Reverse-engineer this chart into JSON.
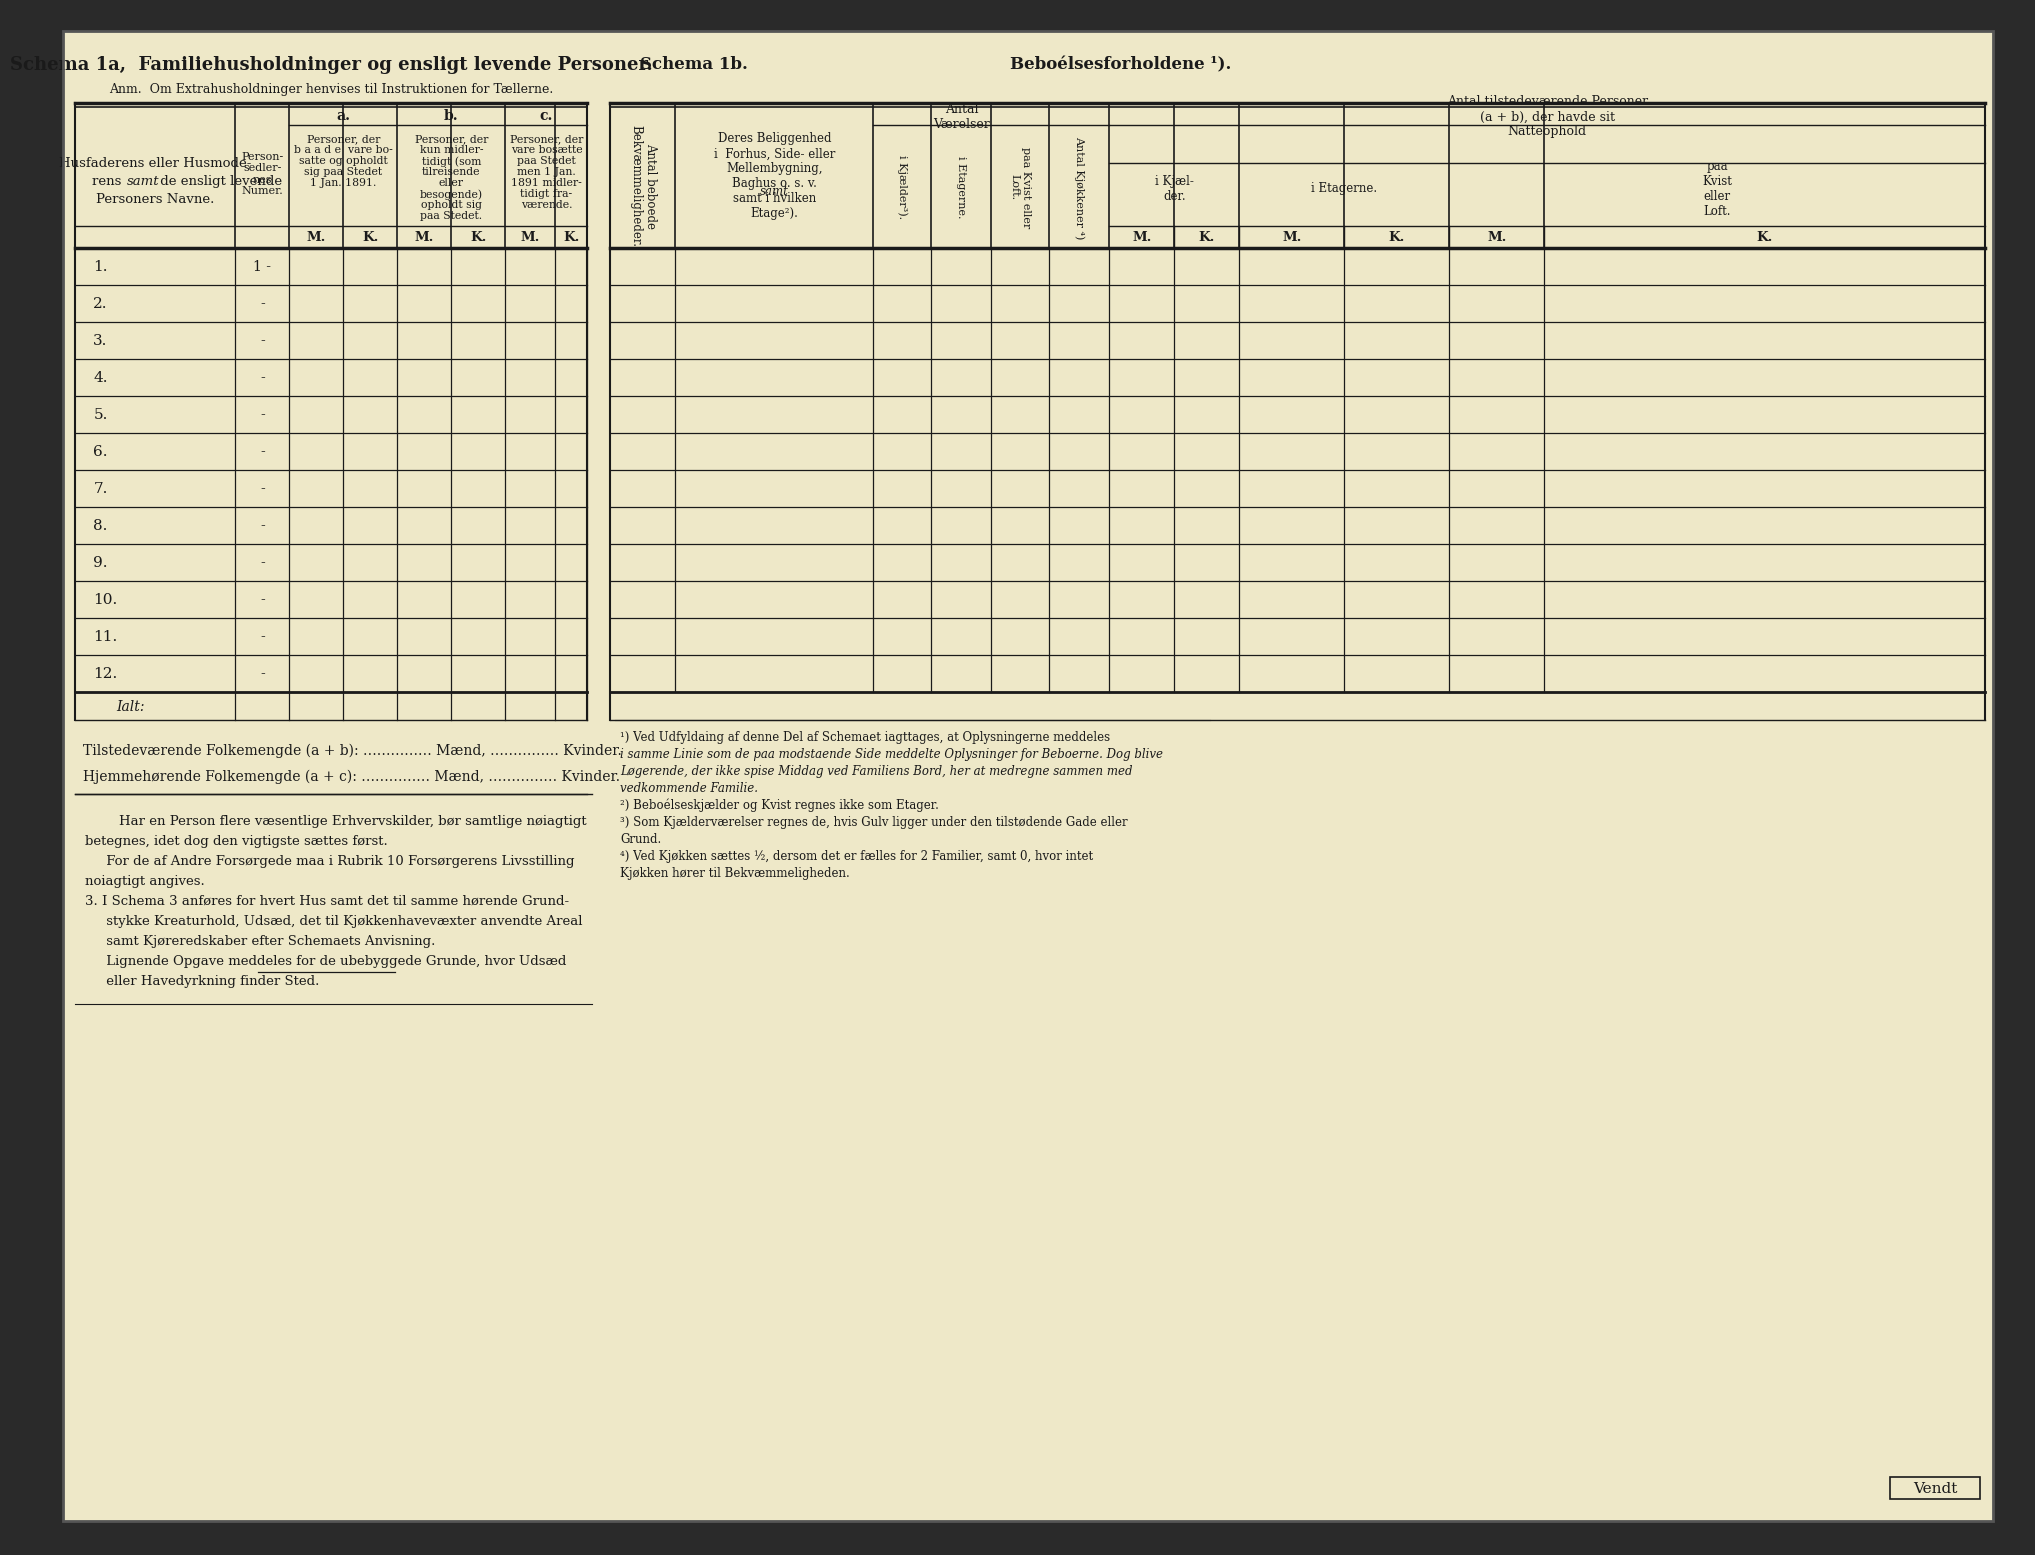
{
  "bg_color": "#eee8c8",
  "border_color": "#1a1a1a",
  "text_color": "#1a1a1a",
  "page_bg": "#2a2a2a",
  "left_title": "Schema 1a,  Familiehusholdninger og ensligt levende Personer.",
  "left_subtitle": "Anm.  Om Extrahusholdninger henvises til Instruktionen for Tællerne.",
  "right_title_left": "Schema 1b.",
  "right_title_right": "Beboélsesforholdene ¹).",
  "col_a_header": "a.",
  "col_b_header": "b.",
  "col_c_header": "c.",
  "left_main_col_header_line1": "Husfaderens eller Husmode-",
  "left_main_col_header_line2": "rens ",
  "left_main_col_header_line2_italic": "samt",
  "left_main_col_header_line2_rest": " de ensligt levende",
  "left_main_col_header_line3": "Personers Navne.",
  "person_num_header": "Person-\nsedler-\nnes\nNumer.",
  "col_a_text_lines": [
    "Personer, der",
    "b a a d e  vare bo-",
    "satte og opholdt",
    "sig paa Stedet",
    "1 Jan. 1891."
  ],
  "col_b_text_lines": [
    "Personer, der",
    "kun midler-",
    "tidigt (som",
    "tilreisende",
    "eller",
    "besogende)",
    "opholdt sig",
    "paa Stedet."
  ],
  "col_c_text_lines": [
    "Personer, der",
    "vare bosætte",
    "paa Stedet",
    "men 1 Jan.",
    "1891 midler-",
    "tidigt fra-",
    "værende."
  ],
  "row_numbers": [
    "1.",
    "2.",
    "3.",
    "4.",
    "5.",
    "6.",
    "7.",
    "8.",
    "9.",
    "10.",
    "11.",
    "12."
  ],
  "ialt_text": "Ialt:",
  "folkemengde_line1": "Tilstedeværende Folkemengde (a + b): …………… Mænd, …………… Kvinder.",
  "folkemengde_line2": "Hjemmehørende Folkemengde (a + c): …………… Mænd, …………… Kvinder.",
  "bottom_text": [
    "        Har en Person flere væsentlige Erhvervskilder, bør samtlige nøiagtigt",
    "betegnes, idet dog den vigtigste sættes først.",
    "     For de af Andre Forsørgede maa i Rubrik 10 Forsørgerens Livsstilling",
    "noiagtigt angives.",
    "3. I Schema 3 anføres for hvert Hus samt det til samme hørende Grund-",
    "     stykke Kreaturhold, Udsæd, det til Kjøkkenhavevæxter anvendte Areal",
    "     samt Kjøreredskaber efter Schemaets Anvisning.",
    "     Lignende Opgave meddeles for de ubebyggede Grunde, hvor Udsæd",
    "     eller Havedyrkning finder Sted."
  ],
  "footnotes_right": [
    "¹) Ved Udfyldaing af denne Del af Schemaet iagttages, at Oplysningerne meddeles",
    "i samme Linie som de paa modstaende Side meddelte Oplysninger for Beboerne. Dog blive",
    "Løgerende, der ikke spise Middag ved Familiens Bord, her at medregne sammen med",
    "vedkommende Familie.",
    "²) Beboélseskjælder og Kvist regnes ikke som Etager.",
    "³) Som Kjælderværelser regnes de, hvis Gulv ligger under den tilstødende Gade eller",
    "Grund.",
    "⁴) Ved Kjøkken sættes ½, dersom det er fælles for 2 Familier, samt 0, hvor intet",
    "Kjøkken hører til Bekvæmmeligheden."
  ],
  "fn_italic_indices": [
    1,
    2,
    3
  ],
  "fn_bold_words": [
    "Løgerende"
  ],
  "vendt_text": "Vendt"
}
